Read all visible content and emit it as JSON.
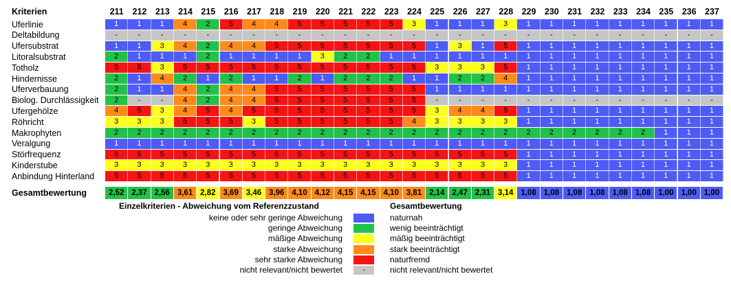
{
  "header_label": "Kriterien",
  "summary_label": "Gesamtbewertung",
  "chart_data": {
    "type": "heatmap",
    "columns": [
      "211",
      "212",
      "213",
      "214",
      "215",
      "216",
      "217",
      "218",
      "219",
      "220",
      "221",
      "222",
      "223",
      "224",
      "225",
      "226",
      "227",
      "228",
      "229",
      "230",
      "231",
      "232",
      "233",
      "234",
      "235",
      "236",
      "237"
    ],
    "rows": [
      {
        "label": "Uferlinie",
        "values": [
          "1",
          "1",
          "1",
          "4",
          "2",
          "5",
          "4",
          "4",
          "5",
          "5",
          "5",
          "5",
          "5",
          "3",
          "1",
          "1",
          "1",
          "3",
          "1",
          "1",
          "1",
          "1",
          "1",
          "1",
          "1",
          "1",
          "1"
        ]
      },
      {
        "label": "Deltabildung",
        "values": [
          "-",
          "-",
          "-",
          "-",
          "-",
          "-",
          "-",
          "-",
          "-",
          "-",
          "-",
          "-",
          "-",
          "-",
          "-",
          "-",
          "-",
          "-",
          "-",
          "-",
          "-",
          "-",
          "-",
          "-",
          "-",
          "-",
          "-"
        ]
      },
      {
        "label": "Ufersubstrat",
        "values": [
          "1",
          "1",
          "3",
          "4",
          "2",
          "4",
          "4",
          "5",
          "5",
          "5",
          "5",
          "5",
          "5",
          "5",
          "1",
          "3",
          "1",
          "5",
          "1",
          "1",
          "1",
          "1",
          "1",
          "1",
          "1",
          "1",
          "1"
        ]
      },
      {
        "label": "Litoralsubstrat",
        "values": [
          "2",
          "1",
          "1",
          "1",
          "2",
          "1",
          "1",
          "1",
          "1",
          "3",
          "2",
          "2",
          "1",
          "1",
          "1",
          "1",
          "1",
          "1",
          "1",
          "1",
          "1",
          "1",
          "1",
          "1",
          "1",
          "1",
          "1"
        ]
      },
      {
        "label": "Totholz",
        "values": [
          "5",
          "5",
          "3",
          "5",
          "5",
          "5",
          "5",
          "5",
          "5",
          "5",
          "5",
          "5",
          "5",
          "5",
          "3",
          "3",
          "3",
          "5",
          "1",
          "1",
          "1",
          "1",
          "1",
          "1",
          "1",
          "1",
          "1"
        ]
      },
      {
        "label": "Hindernisse",
        "values": [
          "2",
          "1",
          "4",
          "2",
          "1",
          "2",
          "1",
          "1",
          "2",
          "1",
          "2",
          "2",
          "2",
          "1",
          "1",
          "2",
          "2",
          "4",
          "1",
          "1",
          "1",
          "1",
          "1",
          "1",
          "1",
          "1",
          "1"
        ]
      },
      {
        "label": "Uferverbauung",
        "values": [
          "2",
          "1",
          "1",
          "4",
          "2",
          "4",
          "4",
          "5",
          "5",
          "5",
          "5",
          "5",
          "5",
          "5",
          "1",
          "1",
          "1",
          "1",
          "1",
          "1",
          "1",
          "1",
          "1",
          "1",
          "1",
          "1",
          "1"
        ]
      },
      {
        "label": "Biolog. Durchlässigkeit",
        "values": [
          "2",
          "-",
          "-",
          "4",
          "2",
          "4",
          "4",
          "5",
          "5",
          "5",
          "5",
          "5",
          "5",
          "5",
          "-",
          "-",
          "-",
          "-",
          "-",
          "-",
          "-",
          "-",
          "-",
          "-",
          "-",
          "-",
          "-"
        ]
      },
      {
        "label": "Ufergehölze",
        "values": [
          "4",
          "5",
          "3",
          "4",
          "5",
          "4",
          "5",
          "5",
          "5",
          "5",
          "5",
          "5",
          "5",
          "5",
          "3",
          "4",
          "4",
          "5",
          "1",
          "1",
          "1",
          "1",
          "1",
          "1",
          "1",
          "1",
          "1"
        ]
      },
      {
        "label": "Röhricht",
        "values": [
          "3",
          "3",
          "3",
          "5",
          "5",
          "5",
          "3",
          "5",
          "5",
          "5",
          "5",
          "5",
          "5",
          "4",
          "3",
          "3",
          "3",
          "3",
          "1",
          "1",
          "1",
          "1",
          "1",
          "1",
          "1",
          "1",
          "1"
        ]
      },
      {
        "label": "Makrophyten",
        "values": [
          "2",
          "2",
          "2",
          "2",
          "2",
          "2",
          "2",
          "2",
          "2",
          "2",
          "2",
          "2",
          "2",
          "2",
          "2",
          "2",
          "2",
          "2",
          "2",
          "2",
          "2",
          "2",
          "2",
          "2",
          "1",
          "1",
          "1"
        ]
      },
      {
        "label": "Veralgung",
        "values": [
          "1",
          "1",
          "1",
          "1",
          "1",
          "1",
          "1",
          "1",
          "1",
          "1",
          "1",
          "1",
          "1",
          "1",
          "1",
          "1",
          "1",
          "1",
          "1",
          "1",
          "1",
          "1",
          "1",
          "1",
          "1",
          "1",
          "1"
        ]
      },
      {
        "label": "Störfrequenz",
        "values": [
          "5",
          "5",
          "5",
          "5",
          "5",
          "5",
          "5",
          "5",
          "5",
          "5",
          "5",
          "5",
          "5",
          "5",
          "5",
          "5",
          "5",
          "5",
          "1",
          "1",
          "1",
          "1",
          "1",
          "1",
          "1",
          "1",
          "1"
        ]
      },
      {
        "label": "Kinderstube",
        "values": [
          "3",
          "3",
          "3",
          "3",
          "3",
          "3",
          "3",
          "3",
          "3",
          "3",
          "3",
          "3",
          "3",
          "3",
          "3",
          "3",
          "3",
          "3",
          "1",
          "1",
          "1",
          "1",
          "1",
          "1",
          "1",
          "1",
          "1"
        ]
      },
      {
        "label": "Anbindung Hinterland",
        "values": [
          "5",
          "5",
          "5",
          "5",
          "5",
          "5",
          "5",
          "5",
          "5",
          "5",
          "5",
          "5",
          "5",
          "5",
          "5",
          "5",
          "5",
          "5",
          "1",
          "1",
          "1",
          "1",
          "1",
          "1",
          "1",
          "1",
          "1"
        ]
      }
    ],
    "totals": [
      "2,52",
      "2,37",
      "2,56",
      "3,61",
      "2,82",
      "3,69",
      "3,46",
      "3,96",
      "4,10",
      "4,12",
      "4,15",
      "4,15",
      "4,10",
      "3,81",
      "2,14",
      "2,47",
      "2,31",
      "3,14",
      "1,08",
      "1,08",
      "1,08",
      "1,08",
      "1,08",
      "1,08",
      "1,00",
      "1,00",
      "1,00"
    ],
    "colors": {
      "1": "#4e5bf5",
      "2": "#22c24a",
      "3": "#ffff1e",
      "4": "#ff8a1c",
      "5": "#f51414",
      "-": "#c6c6c6"
    },
    "total_classes": [
      {
        "min": 1.0,
        "max": 1.5,
        "color": "#4e5bf5"
      },
      {
        "min": 1.5,
        "max": 2.75,
        "color": "#22c24a"
      },
      {
        "min": 2.75,
        "max": 3.5,
        "color": "#ffff1e"
      },
      {
        "min": 3.5,
        "max": 3.7,
        "color": "#ff8a1c"
      },
      {
        "min": 3.7,
        "max": 5.0,
        "color": "#ff8a1c"
      }
    ]
  },
  "legend": {
    "left_title": "Einzelkriterien - Abweichung vom Referenzzustand",
    "right_title": "Gesamtbewertung",
    "items": [
      {
        "key": "1",
        "left": "keine oder sehr geringe Abweichung",
        "right": "naturnah",
        "swatch_text": ""
      },
      {
        "key": "2",
        "left": "geringe Abweichung",
        "right": "wenig beeinträchtigt",
        "swatch_text": ""
      },
      {
        "key": "3",
        "left": "mäßige Abweichung",
        "right": "mäßig beeinträchtigt",
        "swatch_text": ""
      },
      {
        "key": "4",
        "left": "starke Abweichung",
        "right": "stark beeinträchtigt",
        "swatch_text": ""
      },
      {
        "key": "5",
        "left": "sehr starke Abweichung",
        "right": "naturfremd",
        "swatch_text": ""
      },
      {
        "key": "-",
        "left": "nicht relevant/nicht bewertet",
        "right": "nicht relevant/nicht bewertet",
        "swatch_text": "-"
      }
    ]
  }
}
